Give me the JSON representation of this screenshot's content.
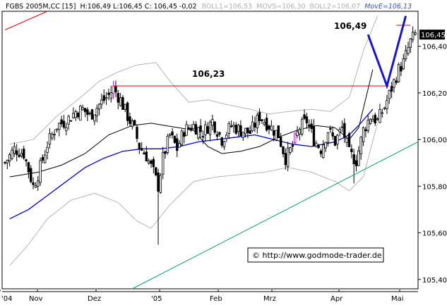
{
  "header": {
    "symbol": "FGBS 2005M,CC [15]",
    "ohlc": "H:106,49 L:106,45 C: 106,45 -0,02",
    "boll1": "BOLL1=106,53",
    "movs": "MOVS=106,30",
    "boll2": "BOLL2=106,07",
    "move": "MovE=106,13"
  },
  "copyright": "© http://www.godmode-trader.de",
  "colors": {
    "background": "#ffffff",
    "frame": "#000000",
    "candle": "#000000",
    "boll_band": "#b4b4b4",
    "movs": "#000000",
    "move": "#0000c8",
    "resistance": "#e00000",
    "trendline_green": "#00a080",
    "trendline_red": "#e00000",
    "projection": "#1414d2",
    "highlight": "#c800c8",
    "last_price_box": "#000000",
    "hdr_label": "#b0b0b0",
    "hdr_value": "#3050c0"
  },
  "chart_data": {
    "type": "candlestick",
    "instrument": "FGBS 2005M,CC [15]",
    "ylim": [
      105.36,
      106.55
    ],
    "y_ticks": [
      "105,40",
      "105,60",
      "105,80",
      "106,00",
      "106,20",
      "106,40"
    ],
    "x_labels": [
      "'04",
      "Nov",
      "Dez",
      "'05",
      "Feb",
      "Mrz",
      "Apr",
      "Mai"
    ],
    "last_price": "106,45",
    "annotations": [
      {
        "text": "106,23",
        "value": 106.23
      },
      {
        "text": "106,49",
        "value": 106.49
      }
    ],
    "resistance": 106.23,
    "series": [
      {
        "name": "MOVS",
        "value": 106.3,
        "points": [
          [
            2,
            105.84
          ],
          [
            14,
            105.86
          ],
          [
            24,
            105.89
          ],
          [
            34,
            105.94
          ],
          [
            44,
            106.02
          ],
          [
            54,
            106.06
          ],
          [
            62,
            106.07
          ],
          [
            68,
            106.06
          ],
          [
            74,
            106.05
          ],
          [
            80,
            106.04
          ],
          [
            86,
            105.97
          ],
          [
            92,
            105.94
          ],
          [
            100,
            105.95
          ],
          [
            108,
            105.97
          ],
          [
            116,
            106.01
          ],
          [
            124,
            106.04
          ],
          [
            132,
            106.06
          ],
          [
            140,
            106.05
          ],
          [
            146,
            106.0
          ],
          [
            150,
            106.05
          ],
          [
            156,
            106.3
          ]
        ]
      },
      {
        "name": "MovE",
        "value": 106.13,
        "points": [
          [
            2,
            105.66
          ],
          [
            10,
            105.7
          ],
          [
            18,
            105.76
          ],
          [
            26,
            105.82
          ],
          [
            34,
            105.88
          ],
          [
            42,
            105.92
          ],
          [
            50,
            105.95
          ],
          [
            58,
            105.96
          ],
          [
            66,
            105.96
          ],
          [
            74,
            105.97
          ],
          [
            82,
            105.99
          ],
          [
            90,
            106.0
          ],
          [
            98,
            106.01
          ],
          [
            106,
            106.02
          ],
          [
            114,
            106.0
          ],
          [
            122,
            105.98
          ],
          [
            130,
            105.97
          ],
          [
            140,
            105.99
          ],
          [
            146,
            106.02
          ],
          [
            150,
            106.06
          ],
          [
            156,
            106.13
          ]
        ]
      },
      {
        "name": "BOLL1",
        "value": 106.53,
        "points": [
          [
            2,
            105.98
          ],
          [
            12,
            106.0
          ],
          [
            22,
            106.1
          ],
          [
            32,
            106.18
          ],
          [
            40,
            106.25
          ],
          [
            48,
            106.29
          ],
          [
            56,
            106.32
          ],
          [
            64,
            106.33
          ],
          [
            70,
            106.25
          ],
          [
            78,
            106.16
          ],
          [
            86,
            106.17
          ],
          [
            94,
            106.15
          ],
          [
            104,
            106.13
          ],
          [
            112,
            106.11
          ],
          [
            120,
            106.12
          ],
          [
            130,
            106.13
          ],
          [
            138,
            106.12
          ],
          [
            146,
            106.18
          ],
          [
            152,
            106.38
          ],
          [
            158,
            106.53
          ]
        ]
      },
      {
        "name": "BOLL2",
        "value": 106.07,
        "points": [
          [
            2,
            105.46
          ],
          [
            10,
            105.55
          ],
          [
            18,
            105.66
          ],
          [
            28,
            105.74
          ],
          [
            38,
            105.77
          ],
          [
            48,
            105.73
          ],
          [
            56,
            105.65
          ],
          [
            62,
            105.62
          ],
          [
            70,
            105.72
          ],
          [
            80,
            105.82
          ],
          [
            90,
            105.84
          ],
          [
            100,
            105.85
          ],
          [
            110,
            105.86
          ],
          [
            120,
            105.88
          ],
          [
            130,
            105.86
          ],
          [
            140,
            105.82
          ],
          [
            146,
            105.78
          ],
          [
            152,
            105.84
          ],
          [
            158,
            106.07
          ]
        ]
      }
    ],
    "trendlines": [
      {
        "name": "support",
        "from": [
          54,
          105.36
        ],
        "to": [
          165,
          105.99
        ]
      },
      {
        "name": "upper",
        "from": [
          0,
          106.47
        ],
        "to": [
          18,
          106.55
        ]
      }
    ],
    "projection": [
      [
        154,
        106.45
      ],
      [
        162,
        106.23
      ],
      [
        170,
        106.53
      ]
    ],
    "highlight_candles": [
      46,
      123
    ]
  }
}
